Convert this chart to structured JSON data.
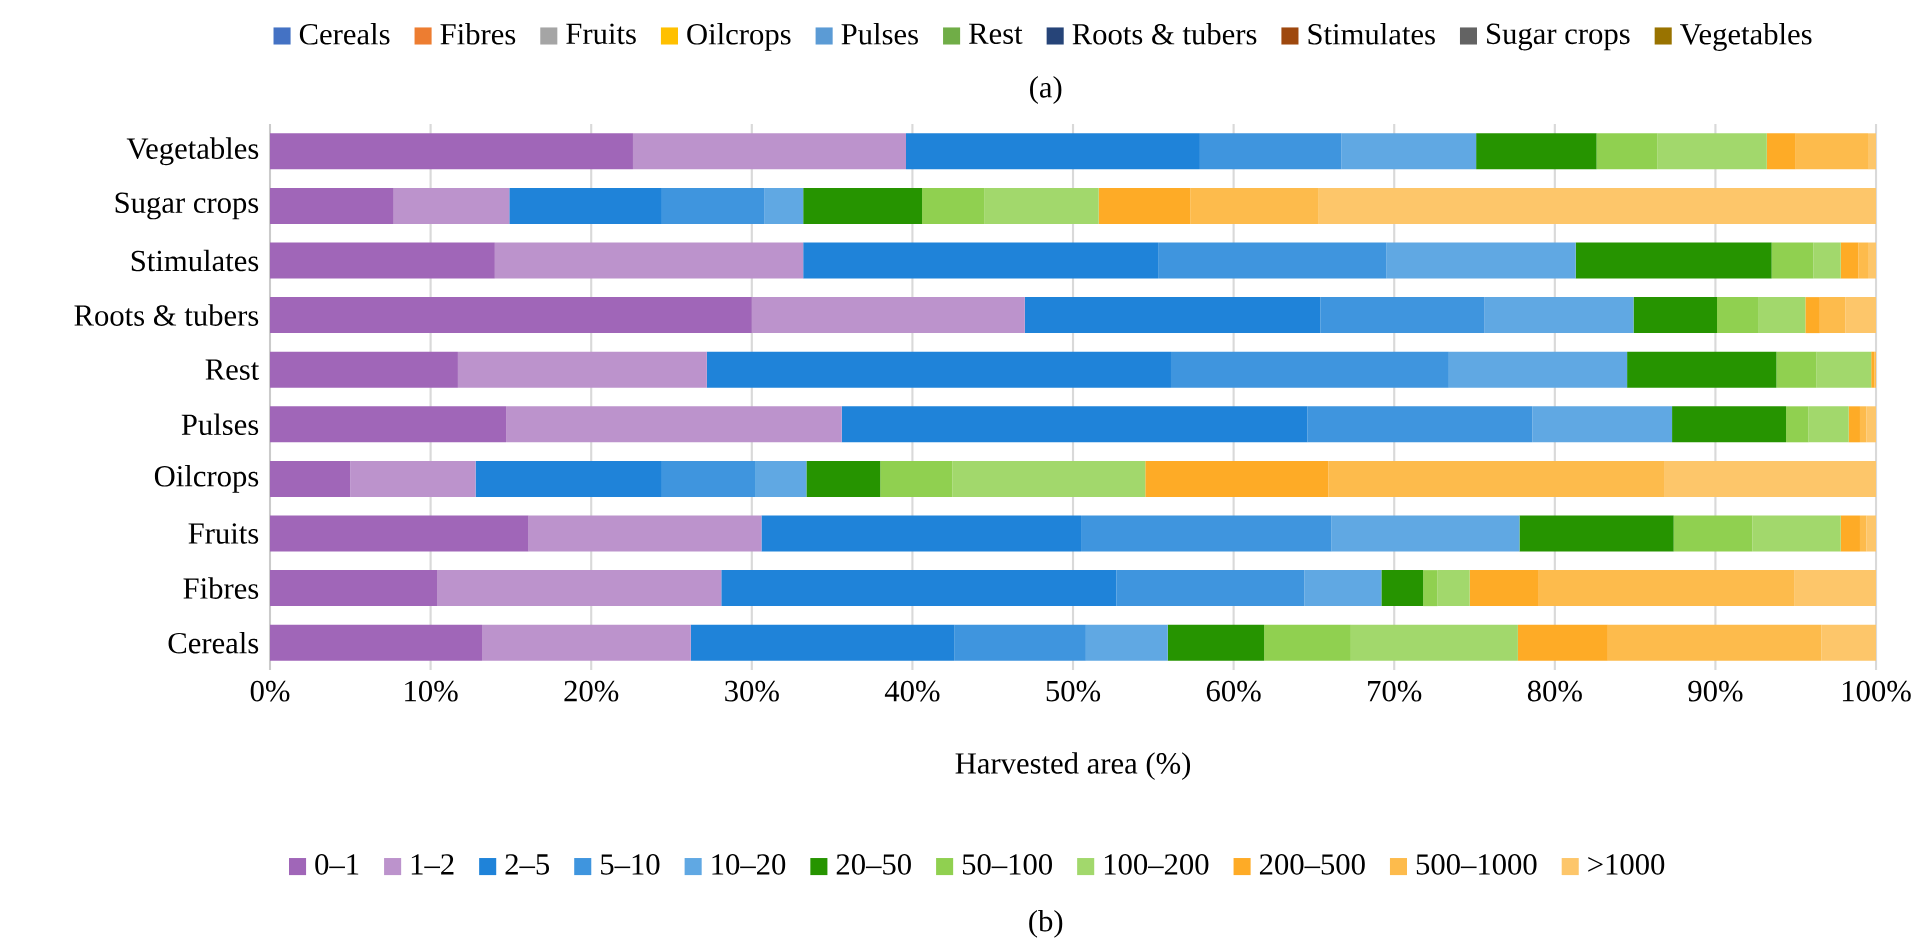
{
  "chart_data": [
    {
      "type": "other",
      "legend": "top",
      "annotations": [
        "(a)"
      ],
      "series": [
        {
          "name": "Cereals",
          "color": "#4472c4"
        },
        {
          "name": "Fibres",
          "color": "#ed7d31"
        },
        {
          "name": "Fruits",
          "color": "#a5a5a5"
        },
        {
          "name": "Oilcrops",
          "color": "#ffc000"
        },
        {
          "name": "Pulses",
          "color": "#5b9bd5"
        },
        {
          "name": "Rest",
          "color": "#70ad47"
        },
        {
          "name": "Roots & tubers",
          "color": "#264478"
        },
        {
          "name": "Stimulates",
          "color": "#9e480e"
        },
        {
          "name": "Sugar crops",
          "color": "#636363"
        },
        {
          "name": "Vegetables",
          "color": "#997300"
        }
      ]
    },
    {
      "type": "bar",
      "orientation": "horizontal",
      "stacked": true,
      "grid": "x",
      "legend": "bottom",
      "xlabel": "Harvested area (%)",
      "annotations": [
        "(b)"
      ],
      "categories": [
        "Vegetables",
        "Sugar crops",
        "Stimulates",
        "Roots & tubers",
        "Rest",
        "Pulses",
        "Oilcrops",
        "Fruits",
        "Fibres",
        "Cereals"
      ],
      "xlim": [
        0,
        100
      ],
      "xticks": [
        {
          "value": 0,
          "label": "0%"
        },
        {
          "value": 10,
          "label": "10%"
        },
        {
          "value": 20,
          "label": "20%"
        },
        {
          "value": 30,
          "label": "30%"
        },
        {
          "value": 40,
          "label": "40%"
        },
        {
          "value": 50,
          "label": "50%"
        },
        {
          "value": 60,
          "label": "60%"
        },
        {
          "value": 70,
          "label": "70%"
        },
        {
          "value": 80,
          "label": "80%"
        },
        {
          "value": 90,
          "label": "90%"
        },
        {
          "value": 100,
          "label": "100%"
        }
      ],
      "series": [
        {
          "name": "0–1",
          "color": "#a066b8",
          "values": [
            22.6,
            7.7,
            14.0,
            30.0,
            11.7,
            14.7,
            5.0,
            16.1,
            10.4,
            13.2
          ]
        },
        {
          "name": "1–2",
          "color": "#bc93cc",
          "values": [
            17.0,
            7.2,
            19.2,
            17.0,
            15.5,
            20.9,
            7.8,
            14.5,
            17.7,
            13.0
          ]
        },
        {
          "name": "2–5",
          "color": "#1f83d9",
          "values": [
            18.3,
            9.5,
            22.1,
            18.4,
            28.9,
            29.0,
            11.6,
            19.9,
            24.6,
            16.4
          ]
        },
        {
          "name": "5–10",
          "color": "#3f95de",
          "values": [
            8.8,
            6.4,
            14.2,
            10.2,
            17.3,
            14.0,
            5.8,
            15.6,
            11.7,
            8.2
          ]
        },
        {
          "name": "10–20",
          "color": "#60a8e3",
          "values": [
            8.4,
            2.4,
            11.8,
            9.3,
            11.1,
            8.7,
            3.2,
            11.7,
            4.8,
            5.1
          ]
        },
        {
          "name": "20–50",
          "color": "#269400",
          "values": [
            7.5,
            7.4,
            12.2,
            5.2,
            9.3,
            7.1,
            4.6,
            9.6,
            2.6,
            6.0
          ]
        },
        {
          "name": "50–100",
          "color": "#90d050",
          "values": [
            3.8,
            3.9,
            2.6,
            2.6,
            2.5,
            1.4,
            4.5,
            4.9,
            0.9,
            5.4
          ]
        },
        {
          "name": "100–200",
          "color": "#a2d86c",
          "values": [
            6.8,
            7.1,
            1.7,
            2.9,
            3.4,
            2.5,
            12.0,
            5.5,
            2.0,
            10.4
          ]
        },
        {
          "name": "200–500",
          "color": "#feab26",
          "values": [
            1.8,
            5.7,
            1.1,
            0.9,
            0.2,
            0.7,
            11.4,
            1.2,
            4.3,
            5.6
          ]
        },
        {
          "name": "500–1000",
          "color": "#fdbb4c",
          "values": [
            4.5,
            8.0,
            0.6,
            1.6,
            0.1,
            0.4,
            20.9,
            0.4,
            15.9,
            13.3
          ]
        },
        {
          "name": ">1000",
          "color": "#fdc66a",
          "values": [
            0.5,
            34.7,
            0.5,
            1.9,
            0.0,
            0.6,
            13.2,
            0.6,
            5.1,
            3.4
          ]
        }
      ]
    }
  ]
}
